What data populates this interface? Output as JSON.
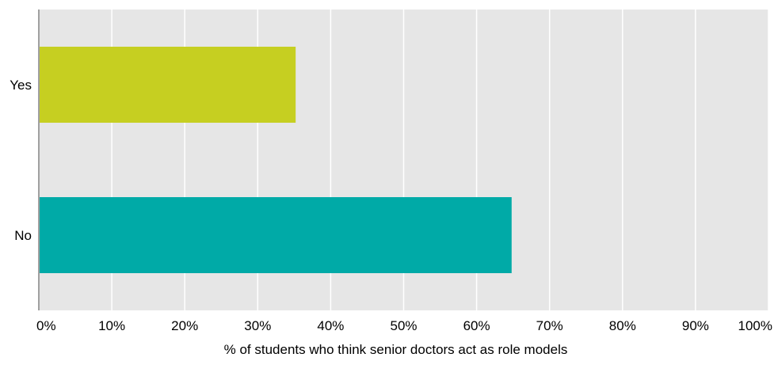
{
  "chart_data": {
    "type": "bar",
    "orientation": "horizontal",
    "categories": [
      "Yes",
      "No"
    ],
    "values": [
      35.2,
      64.8
    ],
    "xlabel": "% of students who think senior doctors act as role models",
    "xlim": [
      0,
      100
    ],
    "ticks": [
      "0%",
      "10%",
      "20%",
      "30%",
      "40%",
      "50%",
      "60%",
      "70%",
      "80%",
      "90%",
      "100%"
    ],
    "grid": true,
    "colors": {
      "Yes": "#c6cf21",
      "No": "#00aaa7",
      "plot_bg": "#e6e6e6",
      "grid": "#ffffff",
      "axis": "#a0a0a0"
    }
  }
}
